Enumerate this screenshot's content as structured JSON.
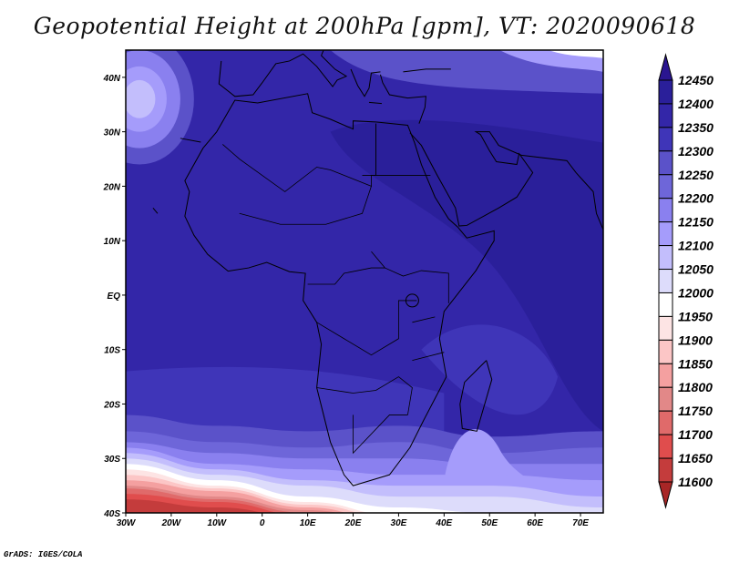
{
  "title": "Geopotential Height at 200hPa [gpm], VT: 2020090618",
  "credit": "GrADS: IGES/COLA",
  "chart_data": {
    "type": "heatmap",
    "title": "Geopotential Height at 200hPa [gpm], VT: 2020090618",
    "variable": "Geopotential Height",
    "units": "gpm",
    "level": "200hPa",
    "valid_time": "2020090618",
    "xlim": [
      -30,
      75
    ],
    "ylim": [
      -40,
      45
    ],
    "x_ticks": [
      {
        "value": -30,
        "label": "30W"
      },
      {
        "value": -20,
        "label": "20W"
      },
      {
        "value": -10,
        "label": "10W"
      },
      {
        "value": 0,
        "label": "0"
      },
      {
        "value": 10,
        "label": "10E"
      },
      {
        "value": 20,
        "label": "20E"
      },
      {
        "value": 30,
        "label": "30E"
      },
      {
        "value": 40,
        "label": "40E"
      },
      {
        "value": 50,
        "label": "50E"
      },
      {
        "value": 60,
        "label": "60E"
      },
      {
        "value": 70,
        "label": "70E"
      }
    ],
    "y_ticks": [
      {
        "value": 40,
        "label": "40N"
      },
      {
        "value": 30,
        "label": "30N"
      },
      {
        "value": 20,
        "label": "20N"
      },
      {
        "value": 10,
        "label": "10N"
      },
      {
        "value": 0,
        "label": "EQ"
      },
      {
        "value": -10,
        "label": "10S"
      },
      {
        "value": -20,
        "label": "20S"
      },
      {
        "value": -30,
        "label": "30S"
      },
      {
        "value": -40,
        "label": "40S"
      }
    ],
    "colorbar": {
      "labels": [
        "12450",
        "12400",
        "12350",
        "12300",
        "12250",
        "12200",
        "12150",
        "12100",
        "12050",
        "12000",
        "11950",
        "11900",
        "11850",
        "11800",
        "11750",
        "11700",
        "11650",
        "11600"
      ],
      "above_color": "#2a1590",
      "colors": [
        "#2a1f9a",
        "#3326a8",
        "#3f35b8",
        "#5b52c9",
        "#6e66d9",
        "#8a80ef",
        "#a59cfb",
        "#c3befc",
        "#dddcfb",
        "#ffffff",
        "#fde4e4",
        "#fcc6c6",
        "#f4a0a0",
        "#e28888",
        "#e06a6a",
        "#e04d4d",
        "#c43c3c"
      ],
      "below_color": "#a82626"
    }
  }
}
